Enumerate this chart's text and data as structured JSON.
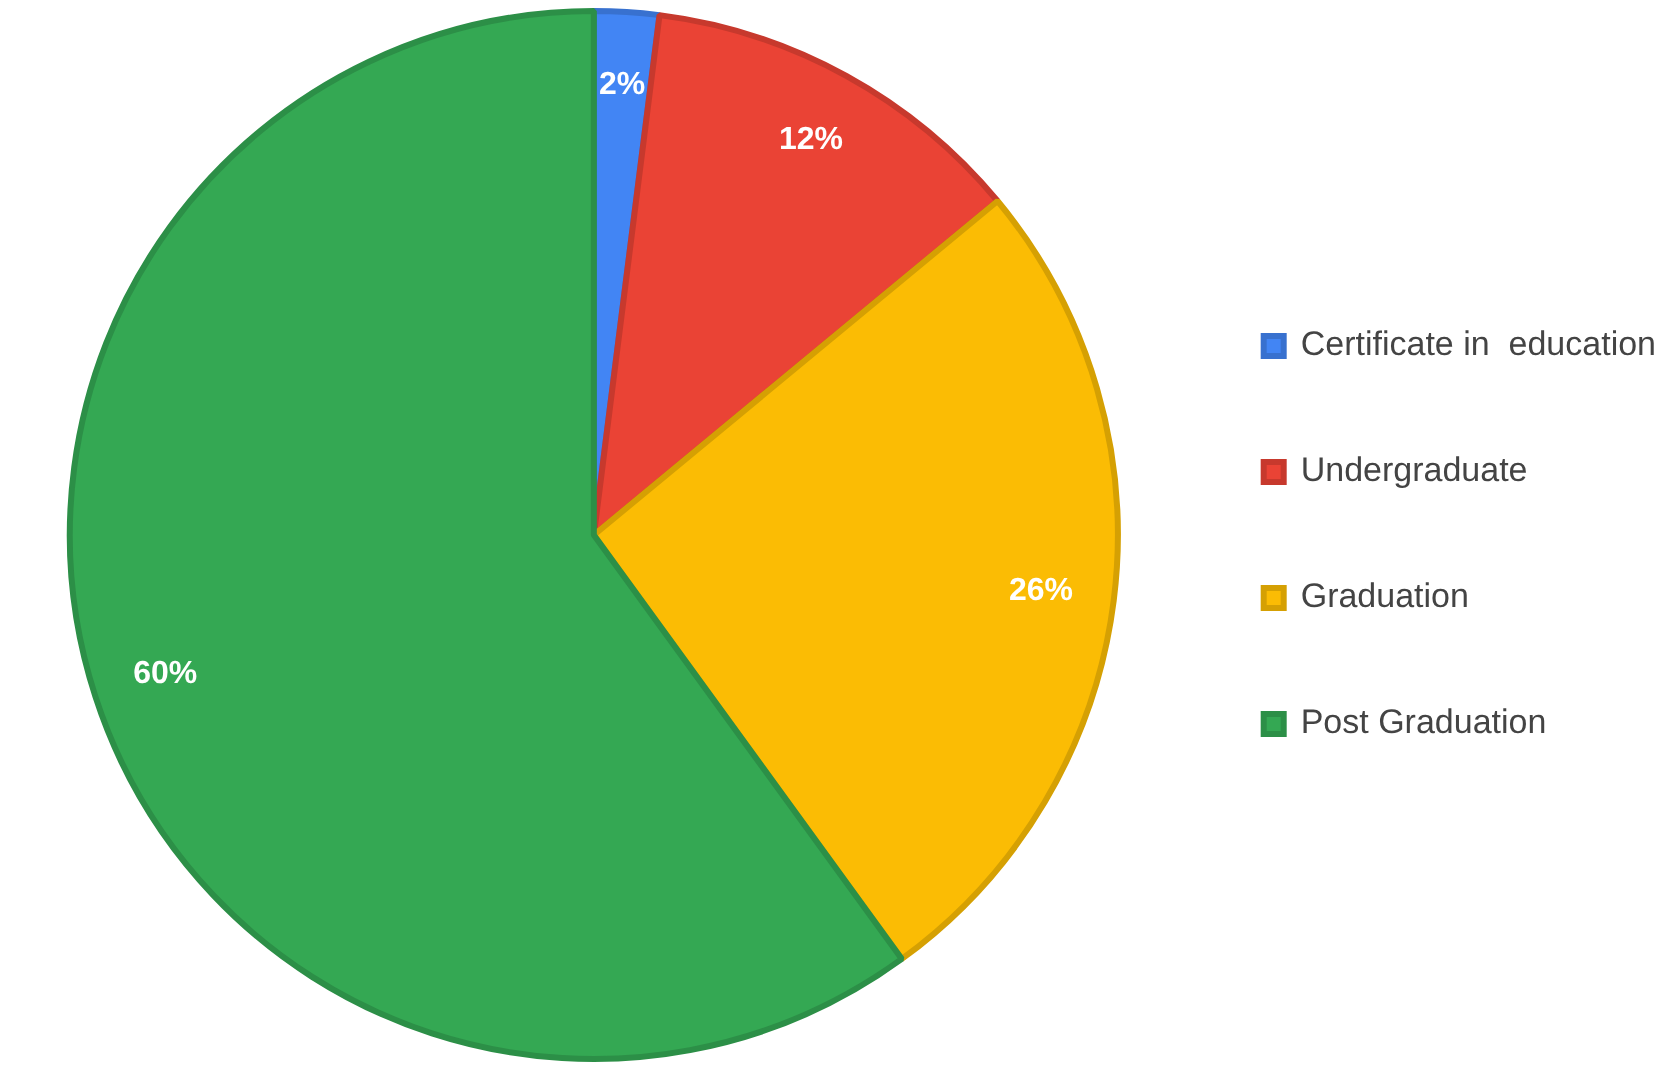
{
  "chart_data": {
    "type": "pie",
    "categories": [
      "Certificate in  education",
      "Undergraduate",
      "Graduation",
      "Post Graduation"
    ],
    "values": [
      2,
      12,
      26,
      60
    ],
    "colors": [
      "#4285f4",
      "#ea4335",
      "#fbbc04",
      "#34a853"
    ],
    "value_labels": [
      "2%",
      "12%",
      "26%",
      "60%"
    ],
    "legend": "right"
  }
}
